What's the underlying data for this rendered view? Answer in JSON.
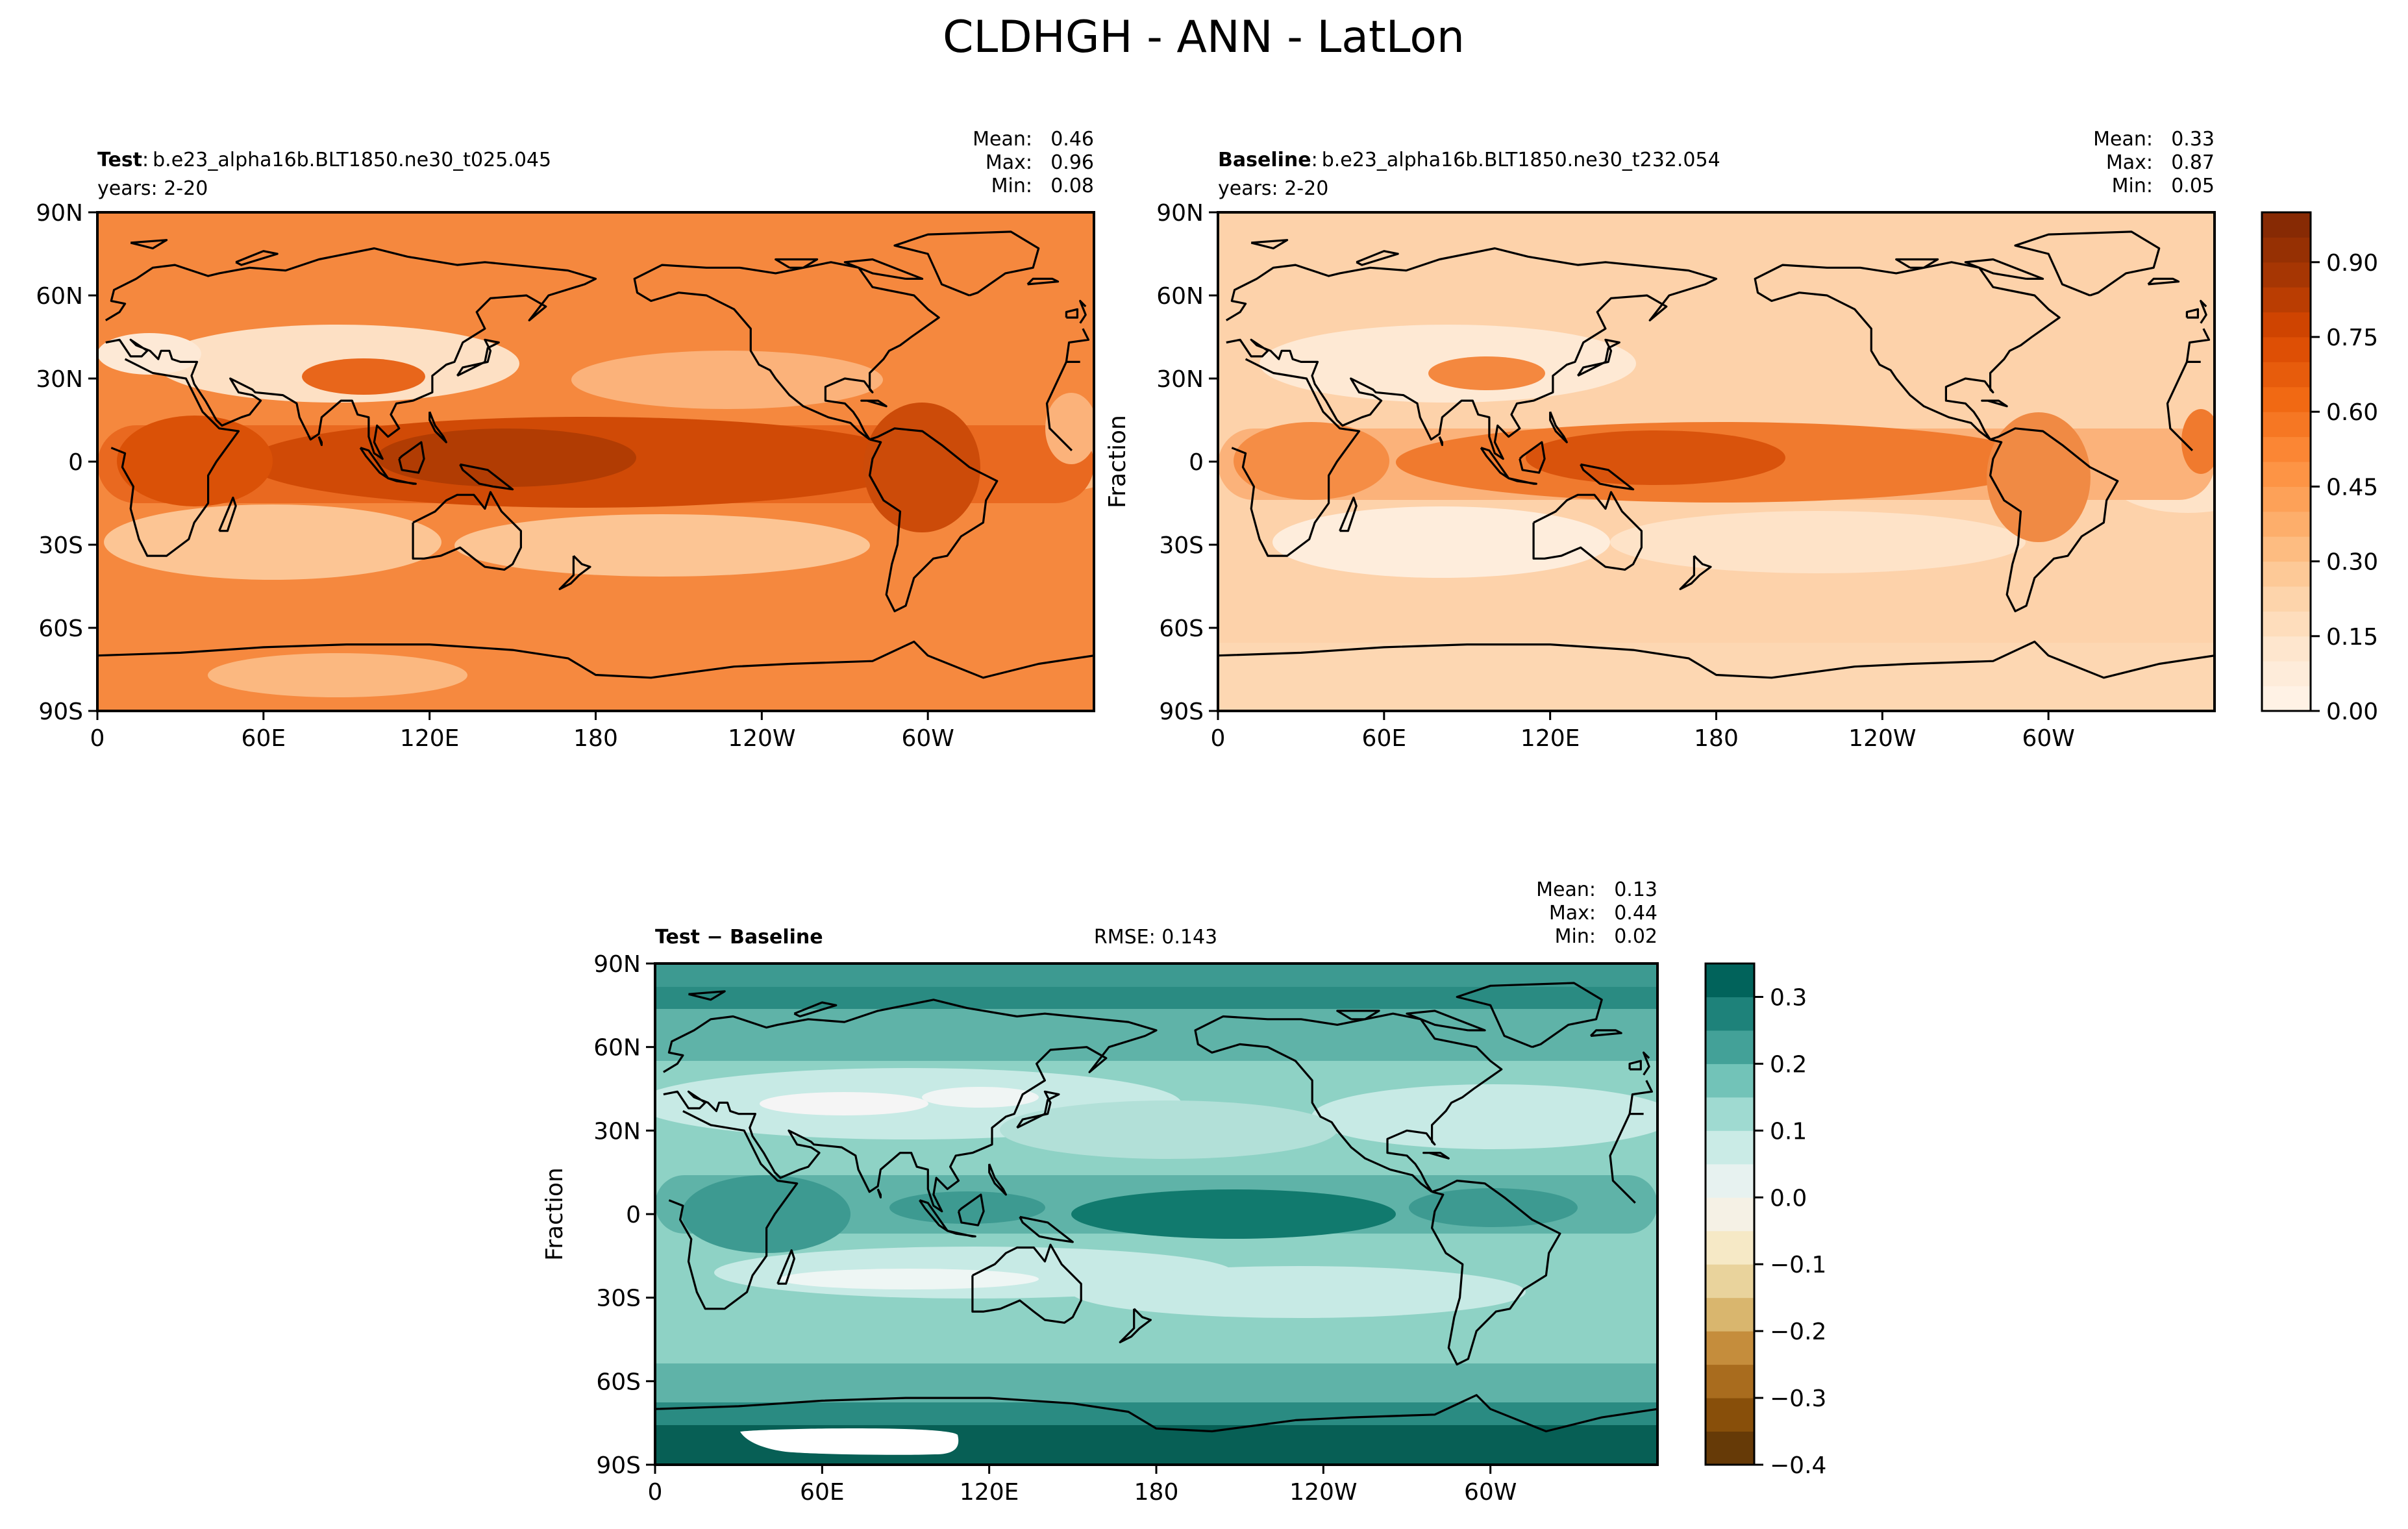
{
  "figure": {
    "title": "CLDHGH - ANN - LatLon"
  },
  "chart_data": [
    {
      "type": "heatmap",
      "panel": "test",
      "label_bold": "Test",
      "label_sep": ":",
      "case": "b.e23_alpha16b.BLT1850.ne30_t025.045",
      "years": "years: 2-20",
      "stats": {
        "mean_label": "Mean:",
        "mean": "0.46",
        "max_label": "Max:",
        "max": "0.96",
        "min_label": "Min:",
        "min": "0.08"
      },
      "ylabel": "",
      "xticks": [
        "0",
        "60E",
        "120E",
        "180",
        "120W",
        "60W"
      ],
      "xtick_lon": [
        0,
        60,
        120,
        180,
        240,
        300
      ],
      "yticks": [
        "90N",
        "60N",
        "30N",
        "0",
        "30S",
        "60S",
        "90S"
      ],
      "ytick_lat": [
        90,
        60,
        30,
        0,
        -30,
        -60,
        -90
      ],
      "xlim": [
        0,
        360
      ],
      "ylim": [
        -90,
        90
      ],
      "colormap": "Oranges",
      "vmin": 0.0,
      "vmax": 1.0
    },
    {
      "type": "heatmap",
      "panel": "baseline",
      "label_bold": "Baseline",
      "label_sep": ":",
      "case": "b.e23_alpha16b.BLT1850.ne30_t232.054",
      "years": "years: 2-20",
      "stats": {
        "mean_label": "Mean:",
        "mean": "0.33",
        "max_label": "Max:",
        "max": "0.87",
        "min_label": "Min:",
        "min": "0.05"
      },
      "ylabel": "Fraction",
      "xticks": [
        "0",
        "60E",
        "120E",
        "180",
        "120W",
        "60W"
      ],
      "xtick_lon": [
        0,
        60,
        120,
        180,
        240,
        300
      ],
      "yticks": [
        "90N",
        "60N",
        "30N",
        "0",
        "30S",
        "60S",
        "90S"
      ],
      "ytick_lat": [
        90,
        60,
        30,
        0,
        -30,
        -60,
        -90
      ],
      "xlim": [
        0,
        360
      ],
      "ylim": [
        -90,
        90
      ],
      "colormap": "Oranges",
      "vmin": 0.0,
      "vmax": 1.0,
      "colorbar": {
        "ticks": [
          "0.00",
          "0.15",
          "0.30",
          "0.45",
          "0.60",
          "0.75",
          "0.90"
        ],
        "tick_values": [
          0.0,
          0.15,
          0.3,
          0.45,
          0.6,
          0.75,
          0.9
        ],
        "range": [
          0.0,
          1.0
        ]
      }
    },
    {
      "type": "heatmap",
      "panel": "difference",
      "label_bold": "Test − Baseline",
      "rmse": "RMSE: 0.143",
      "stats": {
        "mean_label": "Mean:",
        "mean": "0.13",
        "max_label": "Max:",
        "max": "0.44",
        "min_label": "Min:",
        "min": "0.02"
      },
      "ylabel": "Fraction",
      "xticks": [
        "0",
        "60E",
        "120E",
        "180",
        "120W",
        "60W"
      ],
      "xtick_lon": [
        0,
        60,
        120,
        180,
        240,
        300
      ],
      "yticks": [
        "90N",
        "60N",
        "30N",
        "0",
        "30S",
        "60S",
        "90S"
      ],
      "ytick_lat": [
        90,
        60,
        30,
        0,
        -30,
        -60,
        -90
      ],
      "xlim": [
        0,
        360
      ],
      "ylim": [
        -90,
        90
      ],
      "colormap": "BrBG",
      "vmin": -0.4,
      "vmax": 0.35,
      "colorbar": {
        "ticks": [
          "0.3",
          "0.2",
          "0.1",
          "0.0",
          "−0.1",
          "−0.2",
          "−0.3",
          "−0.4"
        ],
        "tick_values": [
          0.3,
          0.2,
          0.1,
          0.0,
          -0.1,
          -0.2,
          -0.3,
          -0.4
        ],
        "range": [
          -0.4,
          0.35
        ]
      }
    }
  ],
  "colors": {
    "oranges": [
      "#fff5eb",
      "#fee6ce",
      "#fdd0a2",
      "#fdae6b",
      "#fd8d3c",
      "#f16913",
      "#d94801",
      "#a63603",
      "#7f2704"
    ],
    "brbg": [
      "#543005",
      "#8c510a",
      "#bf812d",
      "#dfc27d",
      "#f6e8c3",
      "#f5f5f5",
      "#c7eae5",
      "#80cdc1",
      "#35978f",
      "#01665e",
      "#003c30"
    ]
  }
}
